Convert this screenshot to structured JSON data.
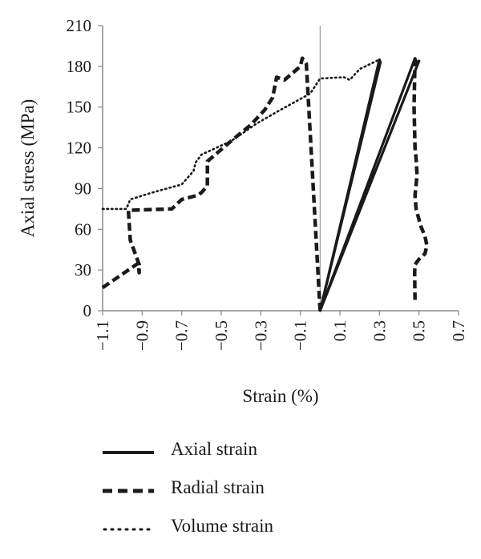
{
  "chart_data": {
    "type": "line",
    "title": "",
    "xlabel": "Strain (%)",
    "ylabel": "Axial stress (MPa)",
    "xlim": [
      -1.1,
      0.7
    ],
    "ylim": [
      0,
      210
    ],
    "x_ticks": [
      -1.1,
      -0.9,
      -0.7,
      -0.5,
      -0.3,
      -0.1,
      0.1,
      0.3,
      0.5,
      0.7
    ],
    "x_tick_labels": [
      "−1.1",
      "−0.9",
      "−0.7",
      "−0.5",
      "−0.3",
      "−0.1",
      "0.1",
      "0.3",
      "0.5",
      "0.7"
    ],
    "y_ticks": [
      0,
      30,
      60,
      90,
      120,
      150,
      180,
      210
    ],
    "y_tick_labels": [
      "0",
      "30",
      "60",
      "90",
      "120",
      "150",
      "180",
      "210"
    ],
    "grid": false,
    "legend_position": "bottom",
    "series": [
      {
        "name": "Axial strain",
        "style": "solid",
        "color": "#1a1a1a",
        "points": [
          [
            0.0,
            0
          ],
          [
            0.3,
            185
          ],
          [
            0.305,
            183
          ],
          [
            0.0,
            0
          ],
          [
            0.48,
            186
          ],
          [
            0.485,
            183
          ],
          [
            0.5,
            184
          ],
          [
            0.0,
            0
          ]
        ]
      },
      {
        "name": "Radial strain",
        "style": "dashed",
        "color": "#1a1a1a",
        "points": [
          [
            -1.1,
            17
          ],
          [
            -0.92,
            35
          ],
          [
            -0.915,
            28
          ],
          [
            -0.915,
            34
          ],
          [
            -0.96,
            52
          ],
          [
            -0.97,
            74
          ],
          [
            -0.75,
            75
          ],
          [
            -0.7,
            82
          ],
          [
            -0.62,
            85
          ],
          [
            -0.6,
            87
          ],
          [
            -0.57,
            92
          ],
          [
            -0.57,
            110
          ],
          [
            -0.45,
            125
          ],
          [
            -0.35,
            137
          ],
          [
            -0.28,
            148
          ],
          [
            -0.24,
            157
          ],
          [
            -0.22,
            172
          ],
          [
            -0.18,
            170
          ],
          [
            -0.1,
            180
          ],
          [
            -0.09,
            186
          ],
          [
            -0.07,
            182
          ],
          [
            0.0,
            0
          ]
        ]
      },
      {
        "name": "Volume strain",
        "style": "dotted",
        "color": "#1a1a1a",
        "points": [
          [
            -1.1,
            75
          ],
          [
            -0.98,
            75
          ],
          [
            -0.96,
            82
          ],
          [
            -0.85,
            87
          ],
          [
            -0.7,
            93
          ],
          [
            -0.64,
            103
          ],
          [
            -0.63,
            109
          ],
          [
            -0.6,
            115
          ],
          [
            -0.45,
            125
          ],
          [
            -0.32,
            138
          ],
          [
            -0.2,
            148
          ],
          [
            -0.05,
            160
          ],
          [
            0.0,
            171
          ],
          [
            0.12,
            172
          ],
          [
            0.15,
            170
          ],
          [
            0.2,
            178
          ],
          [
            0.3,
            185
          ]
        ]
      },
      {
        "name": "",
        "style": "dashed",
        "color": "#1a1a1a",
        "points": [
          [
            0.48,
            186
          ],
          [
            0.475,
            150
          ],
          [
            0.48,
            120
          ],
          [
            0.485,
            112
          ],
          [
            0.49,
            100
          ],
          [
            0.48,
            85
          ],
          [
            0.485,
            75
          ],
          [
            0.51,
            62
          ],
          [
            0.53,
            55
          ],
          [
            0.54,
            48
          ],
          [
            0.53,
            42
          ],
          [
            0.5,
            38
          ],
          [
            0.48,
            34
          ],
          [
            0.478,
            28
          ],
          [
            0.48,
            8
          ]
        ]
      }
    ]
  }
}
